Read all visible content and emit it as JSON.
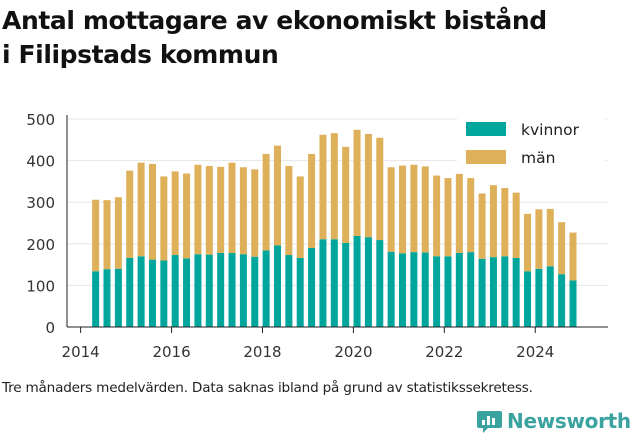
{
  "title": {
    "line1": "Antal mottagare av ekonomiskt bistånd",
    "line2": "i Filipstads kommun"
  },
  "footnote": "Tre månaders medelvärden. Data saknas ibland på grund av statistikssekretess.",
  "brand": {
    "name": "Newsworthy"
  },
  "colors": {
    "kvinnor": "#00a69c",
    "man": "#deb05a",
    "brand": "#3aa3a0"
  },
  "chart_data": {
    "type": "bar",
    "stacked": true,
    "xlim": [
      2013.7,
      2025.6
    ],
    "ylim": [
      0,
      500
    ],
    "x_ticks": [
      2014,
      2016,
      2018,
      2020,
      2022,
      2024
    ],
    "y_ticks": [
      0,
      100,
      200,
      300,
      400,
      500
    ],
    "grid": true,
    "legend_position": "top-right",
    "x": [
      2014.33,
      2014.58,
      2014.83,
      2015.08,
      2015.33,
      2015.58,
      2015.83,
      2016.08,
      2016.33,
      2016.58,
      2016.83,
      2017.08,
      2017.33,
      2017.58,
      2017.83,
      2018.08,
      2018.33,
      2018.58,
      2018.83,
      2019.08,
      2019.33,
      2019.58,
      2019.83,
      2020.08,
      2020.33,
      2020.58,
      2020.83,
      2021.08,
      2021.33,
      2021.58,
      2021.83,
      2022.08,
      2022.33,
      2022.58,
      2022.83,
      2023.08,
      2023.33,
      2023.58,
      2023.83,
      2024.08,
      2024.33,
      2024.58,
      2024.83
    ],
    "series": [
      {
        "name": "kvinnor",
        "values": [
          134,
          139,
          140,
          166,
          170,
          162,
          160,
          173,
          165,
          175,
          174,
          178,
          178,
          175,
          169,
          184,
          196,
          173,
          166,
          190,
          211,
          211,
          202,
          219,
          216,
          209,
          181,
          177,
          180,
          179,
          170,
          170,
          178,
          180,
          164,
          168,
          170,
          166,
          134,
          140,
          146,
          127,
          112
        ]
      },
      {
        "name": "män",
        "values": [
          172,
          166,
          172,
          210,
          225,
          230,
          202,
          201,
          204,
          215,
          213,
          207,
          217,
          209,
          210,
          232,
          240,
          214,
          196,
          226,
          251,
          255,
          231,
          255,
          248,
          246,
          203,
          211,
          210,
          207,
          194,
          188,
          190,
          178,
          157,
          173,
          164,
          157,
          138,
          143,
          138,
          125,
          115
        ]
      }
    ]
  }
}
